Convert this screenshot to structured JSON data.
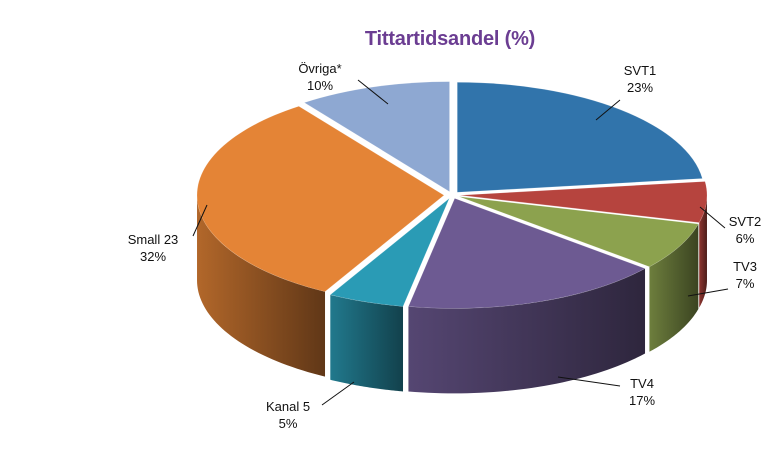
{
  "chart_data": {
    "type": "pie",
    "title": "Tittartidsandel (%)",
    "slices": [
      {
        "label": "SVT1",
        "value": 23,
        "display": "23%",
        "color": "#3174ab"
      },
      {
        "label": "SVT2",
        "value": 6,
        "display": "6%",
        "color": "#b6443e"
      },
      {
        "label": "TV3",
        "value": 7,
        "display": "7%",
        "color": "#8ca24e"
      },
      {
        "label": "TV4",
        "value": 17,
        "display": "17%",
        "color": "#6d5a92"
      },
      {
        "label": "Kanal 5",
        "value": 5,
        "display": "5%",
        "color": "#2a9bb5"
      },
      {
        "label": "Small 23",
        "value": 32,
        "display": "32%",
        "color": "#e48436"
      },
      {
        "label": "Övriga*",
        "value": 10,
        "display": "10%",
        "color": "#8ea8d2"
      }
    ],
    "legend": "none",
    "style": "3d-exploded-pie"
  }
}
